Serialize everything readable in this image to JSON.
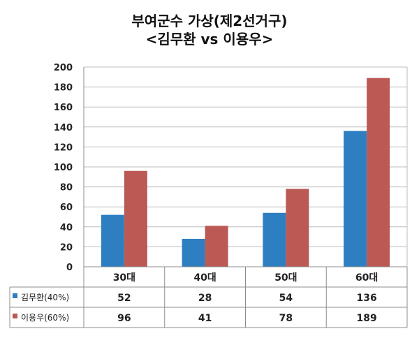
{
  "chart_data": {
    "type": "bar",
    "title": "부여군수 가상(제2선거구)",
    "subtitle": "<김무환 vs 이용우>",
    "categories": [
      "30대",
      "40대",
      "50대",
      "60대"
    ],
    "series": [
      {
        "name": "김무환(40%)",
        "color": "#2e7fc1",
        "values": [
          52,
          28,
          54,
          136
        ]
      },
      {
        "name": "이용우(60%)",
        "color": "#bb5955",
        "values": [
          96,
          41,
          78,
          189
        ]
      }
    ],
    "ylim": [
      0,
      200
    ],
    "yticks": [
      0,
      20,
      40,
      60,
      80,
      100,
      120,
      140,
      160,
      180,
      200
    ],
    "grid": true,
    "legend": "data-table"
  }
}
